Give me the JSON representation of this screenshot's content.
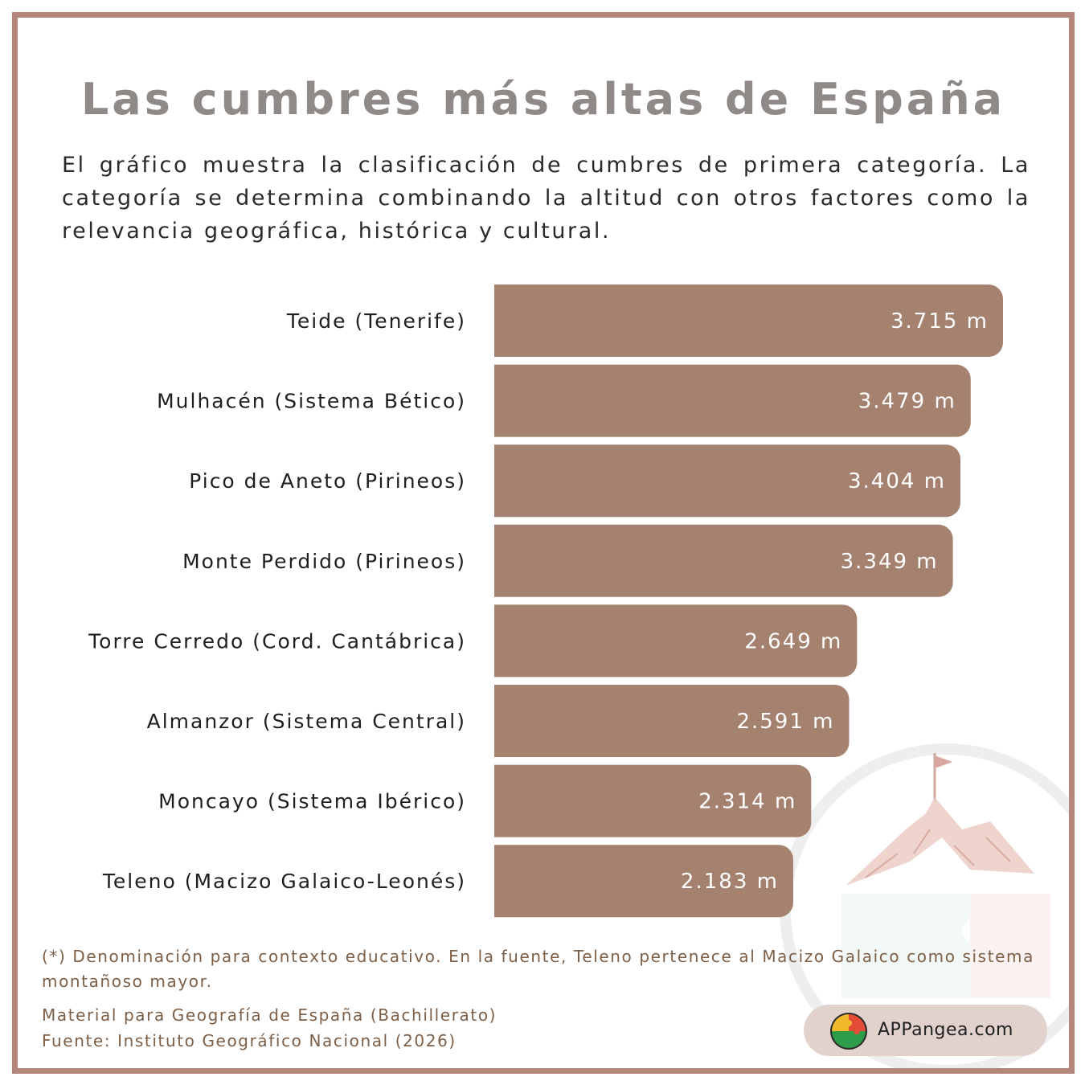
{
  "title": "Las cumbres más altas de España",
  "intro": "El gráfico muestra la clasificación de cumbres de primera categoría. La categoría se determina combinando la altitud con otros factores como la relevancia geográfica, histórica y cultural.",
  "footnote": "(*) Denominación para contexto educativo. En la fuente, Teleno pertenece al Macizo Galaico como sistema montañoso mayor.",
  "material": "Material para Geografía de España (Bachillerato)",
  "source": "Fuente: Instituto Geográfico Nacional (2026)",
  "brand": "APPangea.com",
  "colors": {
    "bar": "#a5826f",
    "frame": "#b5877a",
    "title": "#8f8a87",
    "footer_text": "#7d5f47"
  },
  "chart_data": {
    "type": "bar",
    "orientation": "horizontal",
    "title": "Las cumbres más altas de España",
    "categories": [
      "Teide (Tenerife)",
      "Mulhacén (Sistema Bético)",
      "Pico de Aneto (Pirineos)",
      "Monte Perdido (Pirineos)",
      "Torre Cerredo (Cord. Cantábrica)",
      "Almanzor (Sistema Central)",
      "Moncayo (Sistema Ibérico)",
      "Teleno (Macizo Galaico-Leonés)"
    ],
    "values": [
      3715,
      3479,
      3404,
      3349,
      2649,
      2591,
      2314,
      2183
    ],
    "value_labels": [
      "3.715 m",
      "3.479 m",
      "3.404 m",
      "3.349 m",
      "2.649 m",
      "2.591 m",
      "2.314 m",
      "2.183 m"
    ],
    "unit": "m",
    "xlim": [
      0,
      3715
    ],
    "grid": false,
    "legend": "none"
  }
}
